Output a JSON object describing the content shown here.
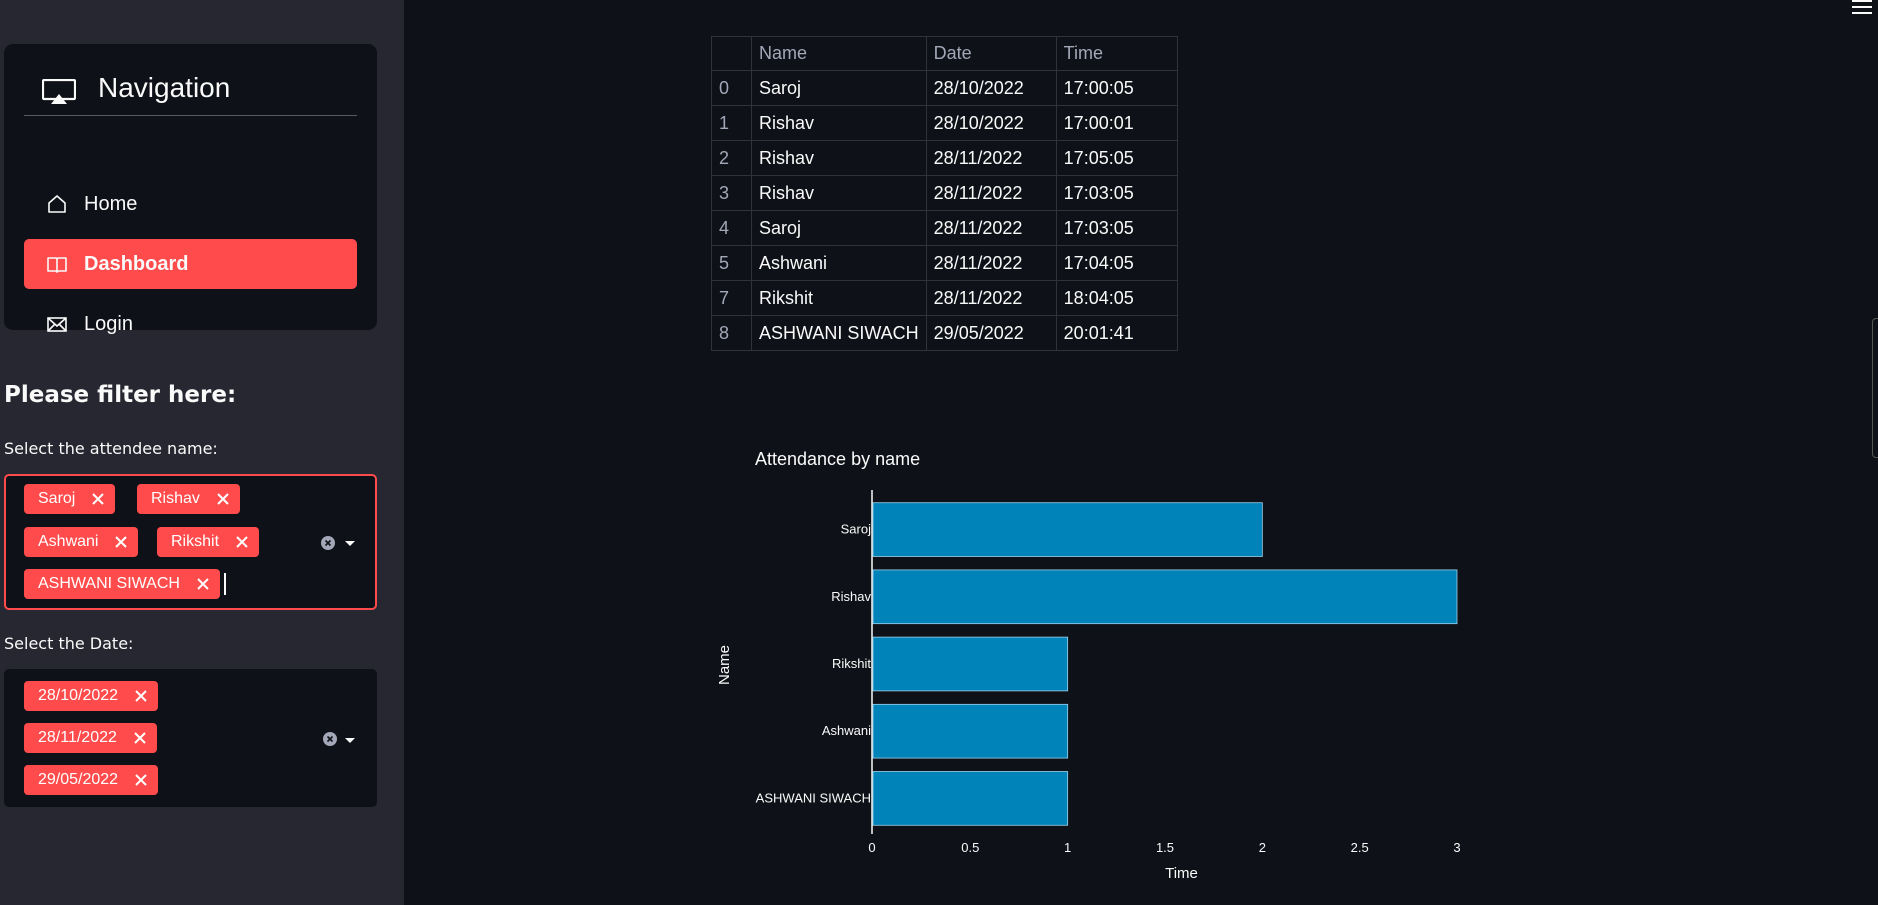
{
  "sidebar": {
    "nav": {
      "title": "Navigation",
      "title_icon": "cast-icon",
      "items": [
        {
          "label": "Home",
          "icon": "house-icon",
          "active": false
        },
        {
          "label": "Dashboard",
          "icon": "book-icon",
          "active": true
        },
        {
          "label": "Login",
          "icon": "envelope-icon",
          "active": false
        }
      ],
      "active_color": "#ff4b4b"
    },
    "filter_title": "Please filter here:",
    "name_filter": {
      "label": "Select the attendee name:",
      "selected": [
        "Saroj",
        "Rishav",
        "Ashwani",
        "Rikshit",
        "ASHWANI SIWACH"
      ]
    },
    "date_filter": {
      "label": "Select the Date:",
      "selected": [
        "28/10/2022",
        "28/11/2022",
        "29/05/2022"
      ]
    }
  },
  "table": {
    "columns": [
      "",
      "Name",
      "Date",
      "Time"
    ],
    "rows": [
      [
        "0",
        "Saroj",
        "28/10/2022",
        "17:00:05"
      ],
      [
        "1",
        "Rishav",
        "28/10/2022",
        "17:00:01"
      ],
      [
        "2",
        "Rishav",
        "28/11/2022",
        "17:05:05"
      ],
      [
        "3",
        "Rishav",
        "28/11/2022",
        "17:03:05"
      ],
      [
        "4",
        "Saroj",
        "28/11/2022",
        "17:03:05"
      ],
      [
        "5",
        "Ashwani",
        "28/11/2022",
        "17:04:05"
      ],
      [
        "7",
        "Rikshit",
        "28/11/2022",
        "18:04:05"
      ],
      [
        "8",
        "ASHWANI SIWACH",
        "29/05/2022",
        "20:01:41"
      ]
    ]
  },
  "chart_data": {
    "type": "bar",
    "orientation": "horizontal",
    "title": "Attendance by name",
    "xlabel": "Time",
    "ylabel": "Name",
    "categories": [
      "Saroj",
      "Rishav",
      "Rikshit",
      "Ashwani",
      "ASHWANI SIWACH"
    ],
    "values": [
      2,
      3,
      1,
      1,
      1
    ],
    "xlim": [
      0,
      3
    ],
    "x_ticks": [
      "0",
      "0.5",
      "1",
      "1.5",
      "2",
      "2.5",
      "3"
    ],
    "bar_color": "#0083b8",
    "grid": false
  }
}
